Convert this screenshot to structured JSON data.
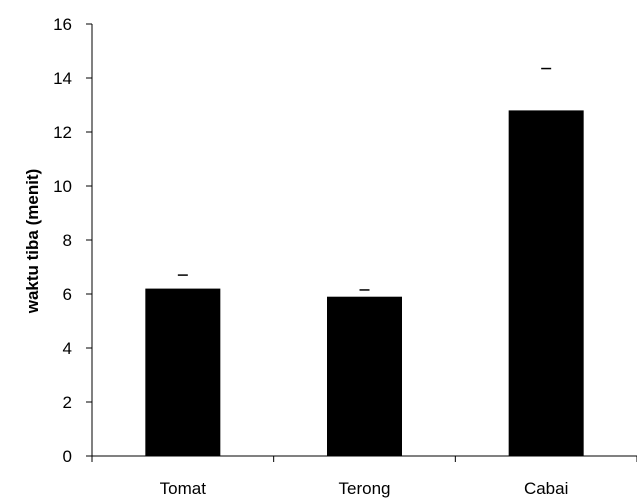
{
  "chart_data": {
    "type": "bar",
    "title": "",
    "xlabel": "",
    "ylabel": "waktu tiba (menit)",
    "categories": [
      "Tomat",
      "Terong",
      "Cabai"
    ],
    "values": [
      6.2,
      5.9,
      12.8
    ],
    "error_upper": [
      6.7,
      6.15,
      14.35
    ],
    "ylim": [
      0,
      16
    ],
    "yticks": [
      0,
      2,
      4,
      6,
      8,
      10,
      12,
      14,
      16
    ],
    "grid": false,
    "legend": "none",
    "bar_color": "#000000"
  }
}
